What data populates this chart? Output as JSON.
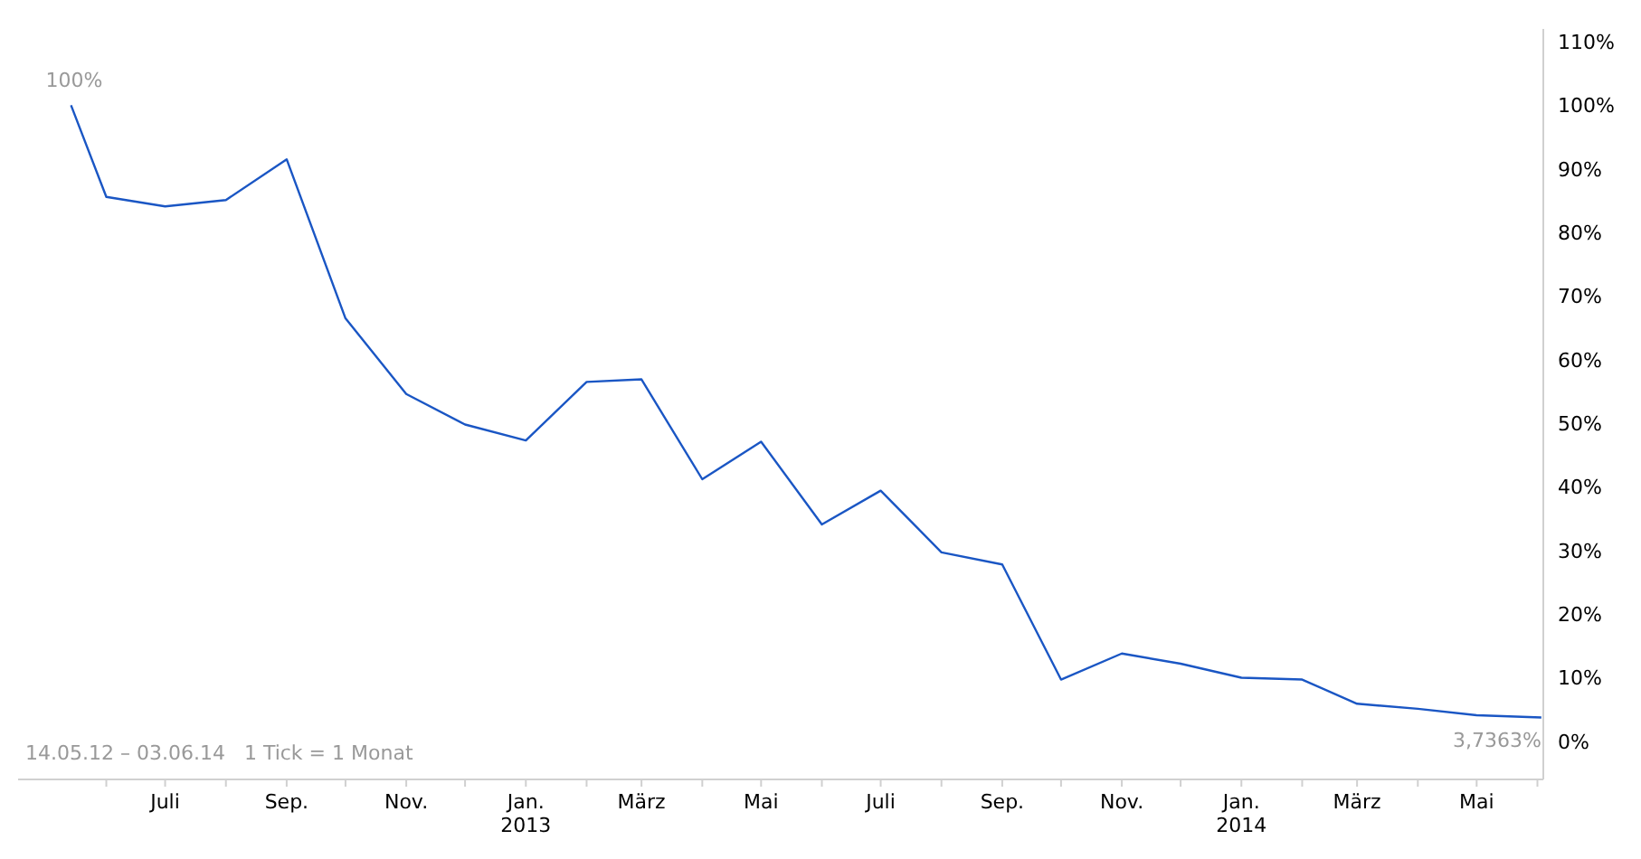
{
  "chart_data": {
    "type": "line",
    "x": [
      "2012-05-14",
      "2012-06-01",
      "2012-07-01",
      "2012-08-01",
      "2012-09-01",
      "2012-10-01",
      "2012-11-01",
      "2012-12-01",
      "2013-01-01",
      "2013-02-01",
      "2013-03-01",
      "2013-04-01",
      "2013-05-01",
      "2013-06-01",
      "2013-07-01",
      "2013-08-01",
      "2013-09-01",
      "2013-10-01",
      "2013-11-01",
      "2013-12-01",
      "2014-01-01",
      "2014-02-01",
      "2014-03-01",
      "2014-04-01",
      "2014-05-01",
      "2014-06-03"
    ],
    "series": [
      {
        "color": "#1a56c4",
        "values": [
          100,
          85.6,
          84.1,
          85.1,
          91.5,
          66.5,
          54.6,
          49.8,
          47.3,
          56.5,
          56.9,
          41.2,
          47.1,
          34.1,
          39.4,
          29.7,
          27.8,
          9.7,
          13.8,
          12.2,
          10.0,
          9.7,
          5.9,
          5.1,
          4.1,
          3.7363
        ]
      }
    ],
    "xlim": [
      "2012-04-17",
      "2014-06-04"
    ],
    "xticks": [
      {
        "value": "2012-06-01",
        "label": null
      },
      {
        "value": "2012-07-01",
        "label": "Juli"
      },
      {
        "value": "2012-08-01",
        "label": null
      },
      {
        "value": "2012-09-01",
        "label": "Sep."
      },
      {
        "value": "2012-10-01",
        "label": null
      },
      {
        "value": "2012-11-01",
        "label": "Nov."
      },
      {
        "value": "2012-12-01",
        "label": null
      },
      {
        "value": "2013-01-01",
        "label": "Jan.\n2013"
      },
      {
        "value": "2013-02-01",
        "label": null
      },
      {
        "value": "2013-03-01",
        "label": "März"
      },
      {
        "value": "2013-04-01",
        "label": null
      },
      {
        "value": "2013-05-01",
        "label": "Mai"
      },
      {
        "value": "2013-06-01",
        "label": null
      },
      {
        "value": "2013-07-01",
        "label": "Juli"
      },
      {
        "value": "2013-08-01",
        "label": null
      },
      {
        "value": "2013-09-01",
        "label": "Sep."
      },
      {
        "value": "2013-10-01",
        "label": null
      },
      {
        "value": "2013-11-01",
        "label": "Nov."
      },
      {
        "value": "2013-12-01",
        "label": null
      },
      {
        "value": "2014-01-01",
        "label": "Jan.\n2014"
      },
      {
        "value": "2014-02-01",
        "label": null
      },
      {
        "value": "2014-03-01",
        "label": "März"
      },
      {
        "value": "2014-04-01",
        "label": null
      },
      {
        "value": "2014-05-01",
        "label": "Mai"
      },
      {
        "value": "2014-06-01",
        "label": null
      }
    ],
    "ylim": [
      -6,
      112
    ],
    "yticks": [
      {
        "value": 0,
        "label": "0%"
      },
      {
        "value": 10,
        "label": "10%"
      },
      {
        "value": 20,
        "label": "20%"
      },
      {
        "value": 30,
        "label": "30%"
      },
      {
        "value": 40,
        "label": "40%"
      },
      {
        "value": 50,
        "label": "50%"
      },
      {
        "value": 60,
        "label": "60%"
      },
      {
        "value": 70,
        "label": "70%"
      },
      {
        "value": 80,
        "label": "80%"
      },
      {
        "value": 90,
        "label": "90%"
      },
      {
        "value": 100,
        "label": "100%"
      },
      {
        "value": 110,
        "label": "110%"
      }
    ],
    "grid": false,
    "legend": false,
    "marker": "none",
    "line_style": "solid",
    "annotations": [
      {
        "text": "100%",
        "x": "2012-05-14",
        "y": 100
      },
      {
        "text": "3,7363%",
        "x": "2014-06-03",
        "y": 3.7363
      },
      "14.05.12 – 03.06.14   1 Tick = 1 Monat"
    ]
  }
}
